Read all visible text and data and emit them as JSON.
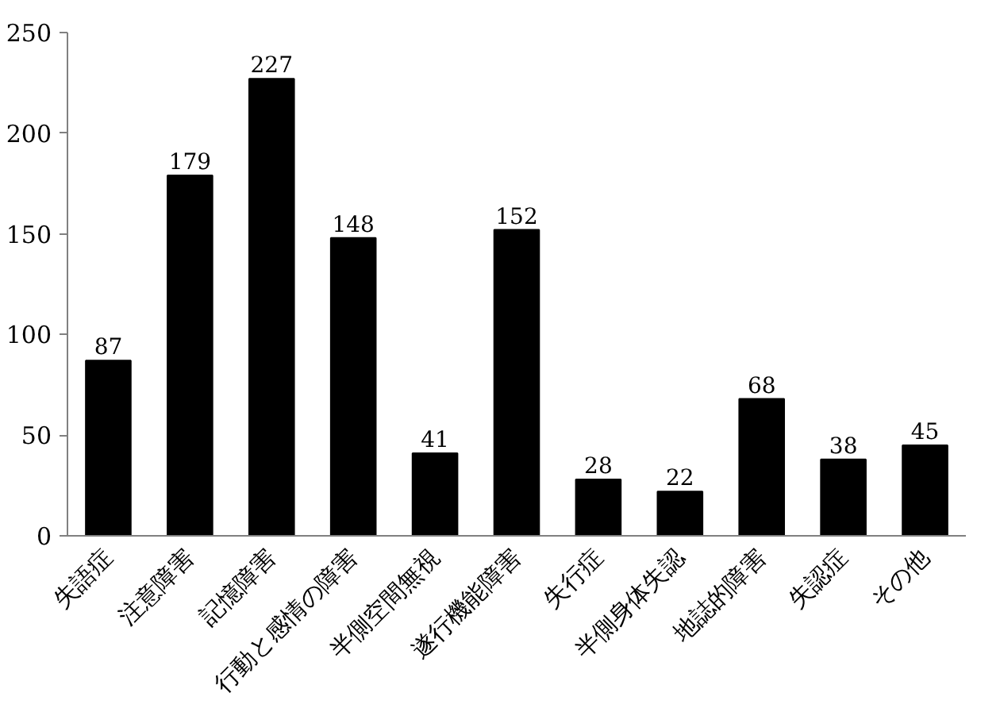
{
  "chart_data": {
    "type": "bar",
    "categories": [
      "失語症",
      "注意障害",
      "記憶障害",
      "行動と感情の障害",
      "半側空間無視",
      "遂行機能障害",
      "失行症",
      "半側身体失認",
      "地誌的障害",
      "失認症",
      "その他"
    ],
    "values": [
      87,
      179,
      227,
      148,
      41,
      152,
      28,
      22,
      68,
      38,
      45
    ],
    "color": "#000000",
    "ylim": [
      0,
      250
    ],
    "yticks": [
      0,
      50,
      100,
      150,
      200,
      250
    ],
    "grid": false,
    "data_labels": true
  }
}
